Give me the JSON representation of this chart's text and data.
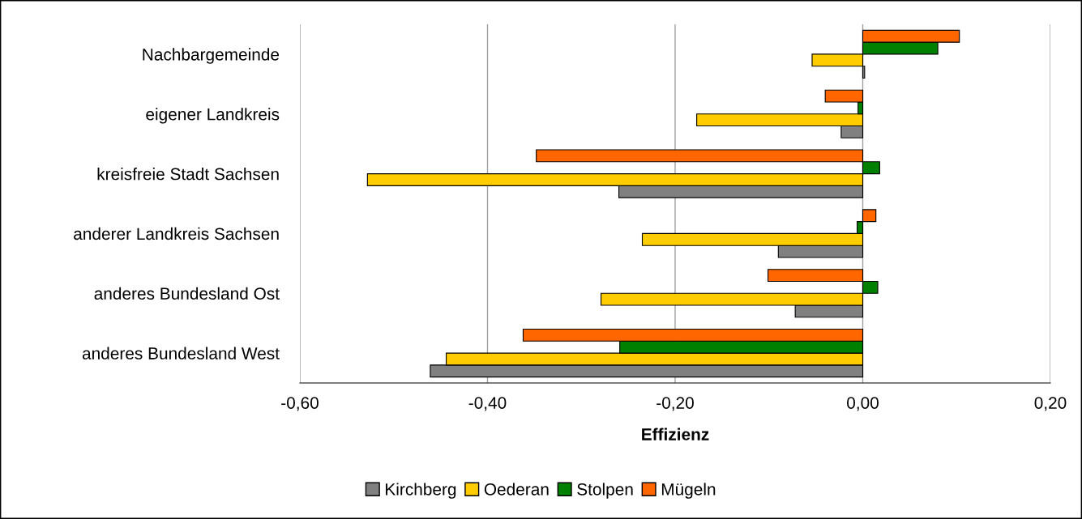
{
  "chart_data": {
    "type": "bar",
    "orientation": "horizontal",
    "xlabel": "Effizienz",
    "categories": [
      "Nachbargemeinde",
      "eigener Landkreis",
      "kreisfreie Stadt Sachsen",
      "anderer Landkreis Sachsen",
      "anderes Bundesland Ost",
      "anderes Bundesland West"
    ],
    "series": [
      {
        "name": "Kirchberg",
        "color": "#808080",
        "values": [
          0.002,
          -0.023,
          -0.26,
          -0.09,
          -0.072,
          -0.461
        ]
      },
      {
        "name": "Oederan",
        "color": "#ffcc00",
        "values": [
          -0.054,
          -0.177,
          -0.528,
          -0.235,
          -0.279,
          -0.444
        ]
      },
      {
        "name": "Stolpen",
        "color": "#008000",
        "values": [
          0.08,
          -0.005,
          0.018,
          -0.006,
          0.016,
          -0.259
        ]
      },
      {
        "name": "Mügeln",
        "color": "#ff6600",
        "values": [
          0.103,
          -0.04,
          -0.348,
          0.014,
          -0.101,
          -0.362
        ]
      }
    ],
    "xlim": [
      -0.6,
      0.2
    ],
    "xticks": [
      {
        "value": -0.6,
        "label": "-0,60"
      },
      {
        "value": -0.4,
        "label": "-0,40"
      },
      {
        "value": -0.2,
        "label": "-0,20"
      },
      {
        "value": 0,
        "label": "0,00"
      },
      {
        "value": 0.2,
        "label": "0,20"
      }
    ],
    "grid": "x",
    "legend": "bottom"
  }
}
